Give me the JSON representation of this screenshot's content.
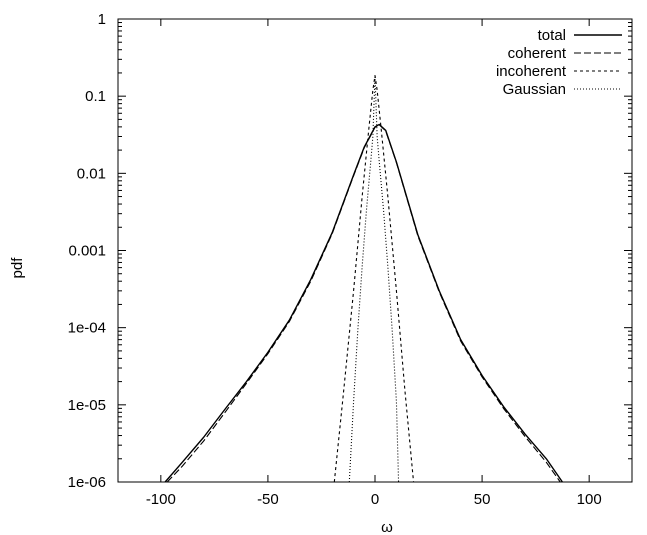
{
  "chart_data": {
    "type": "line",
    "title": "",
    "xlabel": "ω",
    "ylabel": "pdf",
    "xlim": [
      -120,
      120
    ],
    "ylim": [
      1e-06,
      1
    ],
    "y_scale": "log",
    "grid": false,
    "legend_position": "top-right",
    "x_ticks": [
      {
        "value": -100,
        "label": "-100"
      },
      {
        "value": -50,
        "label": "-50"
      },
      {
        "value": 0,
        "label": "0"
      },
      {
        "value": 50,
        "label": "50"
      },
      {
        "value": 100,
        "label": "100"
      }
    ],
    "y_ticks": [
      {
        "value": 1e-06,
        "label": "1e-06"
      },
      {
        "value": 1e-05,
        "label": "1e-05"
      },
      {
        "value": 0.0001,
        "label": "1e-04"
      },
      {
        "value": 0.001,
        "label": "0.001"
      },
      {
        "value": 0.01,
        "label": "0.01"
      },
      {
        "value": 0.1,
        "label": "0.1"
      },
      {
        "value": 1,
        "label": "1"
      }
    ],
    "series": [
      {
        "name": "total",
        "style": "solid",
        "x": [
          -98,
          -90,
          -80,
          -70,
          -60,
          -50,
          -40,
          -30,
          -20,
          -10,
          -5,
          0,
          2,
          5,
          10,
          20,
          30,
          40,
          50,
          60,
          70,
          80,
          87.5
        ],
        "y": [
          1e-06,
          1.8e-06,
          3.8e-06,
          8.8e-06,
          2e-05,
          4.8e-05,
          0.000125,
          0.00042,
          0.0017,
          0.0095,
          0.022,
          0.04,
          0.043,
          0.036,
          0.014,
          0.0016,
          0.0003,
          7e-05,
          2.4e-05,
          9.5e-06,
          4.2e-06,
          2e-06,
          1e-06
        ]
      },
      {
        "name": "coherent",
        "style": "dashed",
        "x": [
          -97,
          -90,
          -80,
          -70,
          -60,
          -50,
          -40,
          -30,
          -20,
          -10,
          -5,
          0,
          2,
          5,
          10,
          20,
          30,
          40,
          50,
          60,
          70,
          80,
          86.5
        ],
        "y": [
          1e-06,
          1.6e-06,
          3.4e-06,
          8e-06,
          1.9e-05,
          4.6e-05,
          0.00012,
          0.0004,
          0.00165,
          0.0093,
          0.0215,
          0.0395,
          0.0425,
          0.0355,
          0.0138,
          0.00155,
          0.00029,
          6.7e-05,
          2.3e-05,
          9e-06,
          3.9e-06,
          1.8e-06,
          1e-06
        ]
      },
      {
        "name": "incoherent",
        "style": "short-dashed",
        "x": [
          -19,
          -15,
          -10,
          -6,
          -3,
          -1,
          0,
          1,
          3,
          6,
          10,
          14,
          18
        ],
        "y": [
          1e-06,
          1.2e-05,
          0.0003,
          0.005,
          0.035,
          0.12,
          0.185,
          0.12,
          0.035,
          0.005,
          0.0003,
          1.5e-05,
          1e-06
        ]
      },
      {
        "name": "Gaussian",
        "style": "dotted",
        "x": [
          -12,
          -11,
          -10,
          -8,
          -6,
          -4,
          -2,
          -1,
          0,
          1,
          2,
          4,
          6,
          8,
          10,
          11
        ],
        "y": [
          1e-06,
          3.3e-06,
          1.1e-05,
          9.5e-05,
          0.00062,
          0.0033,
          0.014,
          0.03,
          0.185,
          0.03,
          0.014,
          0.0033,
          0.00062,
          9.5e-05,
          1.1e-05,
          1e-06
        ]
      }
    ]
  }
}
